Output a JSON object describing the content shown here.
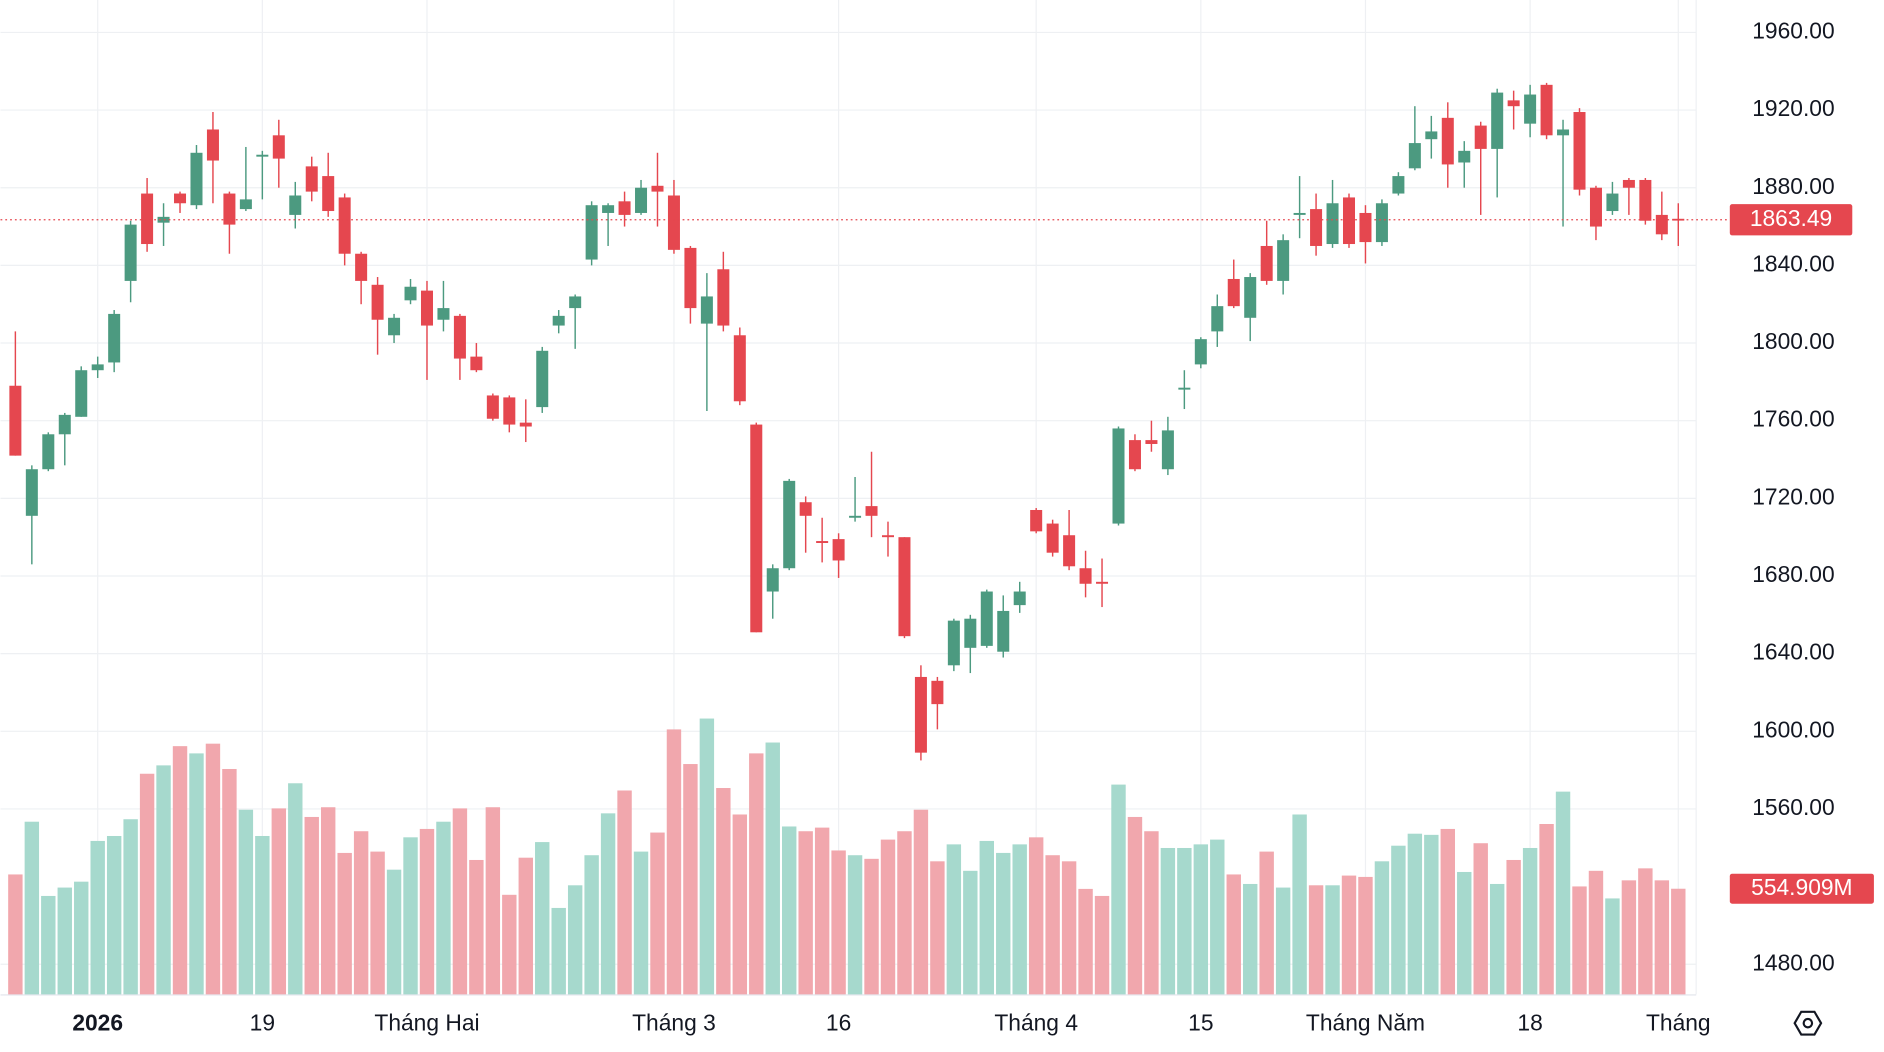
{
  "chart_data": {
    "type": "candlestick",
    "categories": [
      null,
      null,
      null,
      null,
      null,
      "2026",
      null,
      null,
      null,
      null,
      null,
      null,
      null,
      null,
      null,
      "19",
      null,
      null,
      null,
      null,
      null,
      null,
      null,
      null,
      null,
      "Tháng Hai",
      null,
      null,
      null,
      null,
      null,
      null,
      null,
      null,
      null,
      null,
      null,
      null,
      null,
      null,
      "Tháng 3",
      null,
      null,
      null,
      null,
      null,
      null,
      null,
      null,
      null,
      "16",
      null,
      null,
      null,
      null,
      null,
      null,
      null,
      null,
      null,
      null,
      null,
      "Tháng 4",
      null,
      null,
      null,
      null,
      null,
      null,
      null,
      null,
      null,
      "15",
      null,
      null,
      null,
      null,
      null,
      null,
      null,
      null,
      null,
      "Tháng Năm",
      null,
      null,
      null,
      null,
      null,
      null,
      null,
      null,
      null,
      "18",
      null,
      null,
      null,
      null,
      null,
      null,
      null,
      null,
      "Tháng"
    ],
    "open": [
      1778,
      1711,
      1735,
      1753,
      1762,
      1786,
      1790,
      1832,
      1877,
      1862,
      1877,
      1871,
      1910,
      1877,
      1869,
      1896,
      1907,
      1866,
      1891,
      1886,
      1875,
      1846,
      1830,
      1804,
      1822,
      1827,
      1812,
      1814,
      1793,
      1773,
      1772,
      1759,
      1767,
      1809,
      1818,
      1843,
      1867,
      1873,
      1867,
      1881,
      1876,
      1849,
      1810,
      1838,
      1804,
      1758,
      1672,
      1684,
      1718,
      1698,
      1699,
      1710,
      1716,
      1701,
      1700,
      1628,
      1626,
      1634,
      1643,
      1644,
      1641,
      1665,
      1714,
      1707,
      1701,
      1684,
      1677,
      1707,
      1750,
      1750,
      1735,
      1776,
      1789,
      1806,
      1833,
      1813,
      1850,
      1832,
      1866,
      1869,
      1851,
      1875,
      1867,
      1852,
      1877,
      1890,
      1905,
      1916,
      1893,
      1912,
      1900,
      1925,
      1913,
      1933,
      1907,
      1919,
      1880,
      1868,
      1884,
      1884,
      1866,
      1864
    ],
    "high": [
      1806,
      1737,
      1754,
      1764,
      1788,
      1793,
      1817,
      1863,
      1885,
      1872,
      1878,
      1902,
      1919,
      1878,
      1901,
      1899,
      1915,
      1883,
      1896,
      1898,
      1877,
      1847,
      1834,
      1815,
      1833,
      1832,
      1832,
      1815,
      1800,
      1774,
      1773,
      1771,
      1798,
      1817,
      1825,
      1873,
      1872,
      1878,
      1884,
      1898,
      1884,
      1850,
      1836,
      1847,
      1808,
      1759,
      1686,
      1730,
      1721,
      1710,
      1702,
      1731,
      1744,
      1708,
      1700,
      1634,
      1628,
      1658,
      1660,
      1673,
      1670,
      1677,
      1715,
      1709,
      1714,
      1693,
      1689,
      1757,
      1753,
      1760,
      1762,
      1786,
      1803,
      1825,
      1843,
      1836,
      1863,
      1856,
      1886,
      1877,
      1884,
      1877,
      1871,
      1874,
      1888,
      1922,
      1917,
      1924,
      1904,
      1914,
      1931,
      1930,
      1933,
      1934,
      1915,
      1921,
      1881,
      1883,
      1885,
      1885,
      1878,
      1872
    ],
    "low": [
      1742,
      1686,
      1734,
      1737,
      1762,
      1782,
      1785,
      1821,
      1847,
      1850,
      1867,
      1869,
      1872,
      1846,
      1868,
      1874,
      1880,
      1859,
      1873,
      1865,
      1840,
      1820,
      1794,
      1800,
      1820,
      1781,
      1806,
      1781,
      1785,
      1760,
      1754,
      1749,
      1764,
      1805,
      1797,
      1840,
      1850,
      1860,
      1866,
      1860,
      1846,
      1810,
      1765,
      1806,
      1768,
      1651,
      1658,
      1683,
      1692,
      1687,
      1679,
      1708,
      1700,
      1690,
      1648,
      1585,
      1601,
      1631,
      1630,
      1643,
      1638,
      1661,
      1702,
      1690,
      1683,
      1669,
      1664,
      1706,
      1734,
      1744,
      1732,
      1766,
      1787,
      1798,
      1818,
      1801,
      1830,
      1825,
      1854,
      1845,
      1849,
      1849,
      1841,
      1850,
      1876,
      1889,
      1895,
      1880,
      1880,
      1866,
      1875,
      1910,
      1906,
      1905,
      1860,
      1876,
      1853,
      1866,
      1866,
      1861,
      1853,
      1850
    ],
    "close": [
      1742,
      1735,
      1753,
      1763,
      1786,
      1789,
      1815,
      1861,
      1851,
      1865,
      1872,
      1898,
      1894,
      1861,
      1874,
      1897,
      1895,
      1876,
      1878,
      1868,
      1846,
      1832,
      1812,
      1813,
      1829,
      1809,
      1818,
      1792,
      1786,
      1761,
      1758,
      1757,
      1796,
      1814,
      1824,
      1871,
      1871,
      1866,
      1880,
      1878,
      1848,
      1818,
      1824,
      1809,
      1770,
      1651,
      1684,
      1729,
      1711,
      1697,
      1688,
      1711,
      1711,
      1700,
      1649,
      1589,
      1614,
      1657,
      1658,
      1672,
      1662,
      1672,
      1703,
      1692,
      1685,
      1676,
      1676,
      1756,
      1735,
      1748,
      1755,
      1777,
      1802,
      1819,
      1819,
      1834,
      1832,
      1853,
      1867,
      1850,
      1872,
      1851,
      1852,
      1872,
      1886,
      1903,
      1909,
      1892,
      1899,
      1900,
      1929,
      1922,
      1928,
      1907,
      1910,
      1879,
      1860,
      1877,
      1880,
      1863,
      1856,
      1863.49
    ],
    "volume": [
      630,
      907,
      517,
      561,
      592,
      806,
      832,
      920,
      1159,
      1203,
      1304,
      1266,
      1317,
      1184,
      970,
      832,
      977,
      1109,
      932,
      983,
      743,
      857,
      750,
      655,
      825,
      869,
      907,
      977,
      706,
      983,
      523,
      718,
      800,
      454,
      573,
      731,
      951,
      1071,
      750,
      850,
      1392,
      1210,
      1449,
      1084,
      945,
      1266,
      1323,
      882,
      857,
      876,
      756,
      731,
      712,
      813,
      857,
      970,
      699,
      788,
      649,
      806,
      743,
      788,
      825,
      731,
      699,
      554,
      517,
      1102,
      932,
      857,
      769,
      769,
      788,
      813,
      630,
      580,
      750,
      561,
      945,
      573,
      573,
      624,
      617,
      699,
      781,
      844,
      838,
      869,
      643,
      794,
      580,
      706,
      769,
      895,
      1065,
      567,
      649,
      504,
      599,
      662,
      599,
      554.909
    ],
    "price_label": "1863.49",
    "volume_label": "554.909M",
    "up_color": "#4c9a80",
    "down_color": "#e5474f",
    "volume_up_color": "#a6d9cd",
    "volume_down_color": "#f1a7ad",
    "ylim": [
      1464.5,
      1976.7
    ],
    "yticks": [
      {
        "value": 1480,
        "label": "1480.00"
      },
      {
        "value": 1560,
        "label": "1560.00"
      },
      {
        "value": 1600,
        "label": "1600.00"
      },
      {
        "value": 1640,
        "label": "1640.00"
      },
      {
        "value": 1680,
        "label": "1680.00"
      },
      {
        "value": 1720,
        "label": "1720.00"
      },
      {
        "value": 1760,
        "label": "1760.00"
      },
      {
        "value": 1800,
        "label": "1800.00"
      },
      {
        "value": 1840,
        "label": "1840.00"
      },
      {
        "value": 1880,
        "label": "1880.00"
      },
      {
        "value": 1920,
        "label": "1920.00"
      },
      {
        "value": 1960,
        "label": "1960.00"
      }
    ],
    "vlim": [
      0,
      2000
    ],
    "grid": true
  }
}
